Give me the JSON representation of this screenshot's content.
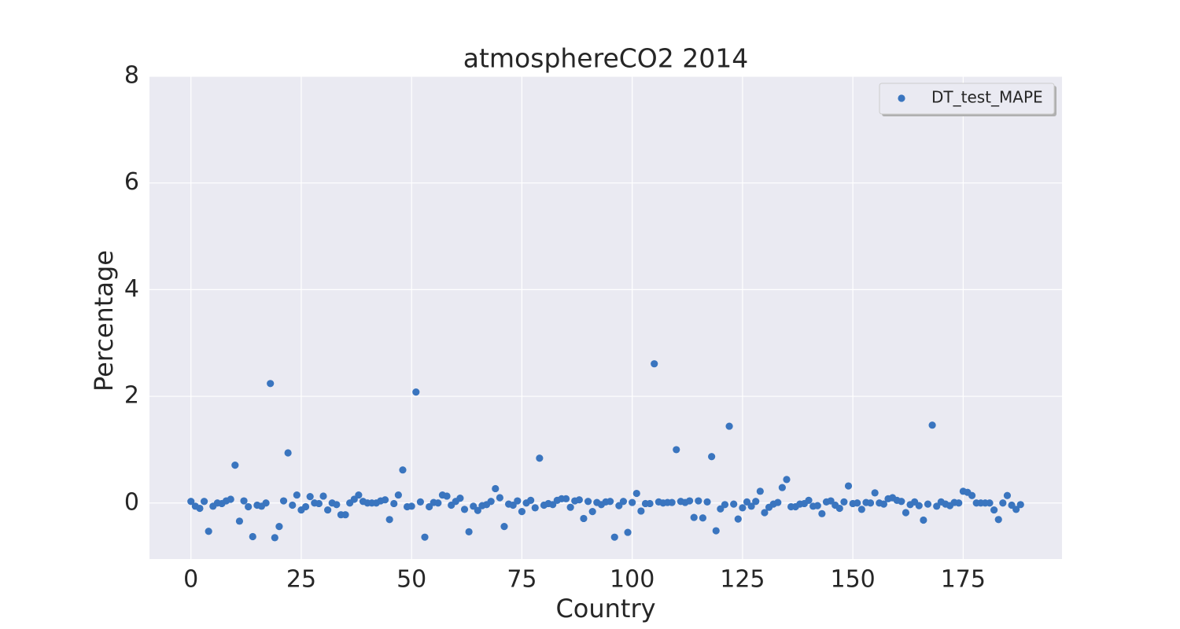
{
  "chart_data": {
    "type": "scatter",
    "title": "atmosphereCO2 2014",
    "x_label": "Country",
    "y_label": "Percentage",
    "x": [
      0,
      1,
      2,
      3,
      4,
      5,
      6,
      7,
      8,
      9,
      10,
      11,
      12,
      13,
      14,
      15,
      16,
      17,
      18,
      19,
      20,
      21,
      22,
      23,
      24,
      25,
      26,
      27,
      28,
      29,
      30,
      31,
      32,
      33,
      34,
      35,
      36,
      37,
      38,
      39,
      40,
      41,
      42,
      43,
      44,
      45,
      46,
      47,
      48,
      49,
      50,
      51,
      52,
      53,
      54,
      55,
      56,
      57,
      58,
      59,
      60,
      61,
      62,
      63,
      64,
      65,
      66,
      67,
      68,
      69,
      70,
      71,
      72,
      73,
      74,
      75,
      76,
      77,
      78,
      79,
      80,
      81,
      82,
      83,
      84,
      85,
      86,
      87,
      88,
      89,
      90,
      91,
      92,
      93,
      94,
      95,
      96,
      97,
      98,
      99,
      100,
      101,
      102,
      103,
      104,
      105,
      106,
      107,
      108,
      109,
      110,
      111,
      112,
      113,
      114,
      115,
      116,
      117,
      118,
      119,
      120,
      121,
      122,
      123,
      124,
      125,
      126,
      127,
      128,
      129,
      130,
      131,
      132,
      133,
      134,
      135,
      136,
      137,
      138,
      139,
      140,
      141,
      142,
      143,
      144,
      145,
      146,
      147,
      148,
      149,
      150,
      151,
      152,
      153,
      154,
      155,
      156,
      157,
      158,
      159,
      160,
      161,
      162,
      163,
      164,
      165,
      166,
      167,
      168,
      169,
      170,
      171,
      172,
      173,
      174,
      175,
      176,
      177,
      178,
      179,
      180,
      181,
      182,
      183,
      184,
      185,
      186,
      187,
      188
    ],
    "series": [
      {
        "name": "DT_test_MAPE",
        "color": "#3a75bf",
        "values": [
          0.03,
          -0.06,
          -0.1,
          0.03,
          -0.53,
          -0.06,
          0,
          -0.01,
          0.04,
          0.07,
          0.71,
          -0.34,
          0.04,
          -0.07,
          -0.63,
          -0.04,
          -0.06,
          0,
          2.24,
          -0.65,
          -0.44,
          0.04,
          0.94,
          -0.04,
          0.15,
          -0.13,
          -0.07,
          0.12,
          0,
          -0.01,
          0.13,
          -0.13,
          0,
          -0.03,
          -0.22,
          -0.22,
          0,
          0.07,
          0.15,
          0.03,
          0,
          0,
          0,
          0.04,
          0.06,
          -0.31,
          -0.01,
          0.15,
          0.62,
          -0.07,
          -0.06,
          2.08,
          0.02,
          -0.64,
          -0.07,
          0.01,
          0,
          0.15,
          0.13,
          -0.04,
          0.03,
          0.09,
          -0.12,
          -0.54,
          -0.06,
          -0.14,
          -0.05,
          -0.03,
          0.03,
          0.27,
          0.1,
          -0.44,
          -0.02,
          -0.04,
          0.04,
          -0.16,
          0,
          0.05,
          -0.09,
          0.84,
          -0.04,
          -0.01,
          -0.03,
          0.05,
          0.08,
          0.08,
          -0.08,
          0.04,
          0.06,
          -0.29,
          0.03,
          -0.16,
          0.01,
          -0.03,
          0.02,
          0.03,
          -0.64,
          -0.05,
          0.03,
          -0.55,
          0.01,
          0.18,
          -0.15,
          -0.01,
          -0.01,
          2.61,
          0.02,
          0,
          0.01,
          0.01,
          1.0,
          0.03,
          0.01,
          0.04,
          -0.27,
          0.04,
          -0.28,
          0.02,
          0.87,
          -0.52,
          -0.11,
          -0.03,
          1.44,
          -0.02,
          -0.3,
          -0.09,
          0.02,
          -0.06,
          0.03,
          0.22,
          -0.18,
          -0.08,
          -0.02,
          0.01,
          0.29,
          0.44,
          -0.07,
          -0.07,
          -0.02,
          -0.01,
          0.05,
          -0.06,
          -0.05,
          -0.2,
          0.02,
          0.04,
          -0.04,
          -0.1,
          0.02,
          0.32,
          -0.01,
          0,
          -0.12,
          0.01,
          0,
          0.19,
          0,
          -0.02,
          0.08,
          0.1,
          0.05,
          0.03,
          -0.18,
          -0.03,
          0.02,
          -0.05,
          -0.32,
          -0.02,
          1.46,
          -0.06,
          0.02,
          -0.02,
          -0.05,
          0.01,
          0,
          0.22,
          0.2,
          0.14,
          0,
          0,
          0,
          0,
          -0.13,
          -0.31,
          0,
          0.14,
          -0.04,
          -0.12,
          -0.03
        ]
      }
    ],
    "xlim": [
      -9.4,
      197.4
    ],
    "ylim": [
      -1.05,
      8.0
    ],
    "xticks": [
      0,
      25,
      50,
      75,
      100,
      125,
      150,
      175
    ],
    "yticks": [
      0,
      2,
      4,
      6,
      8
    ],
    "grid": true,
    "legend": "upper right"
  }
}
